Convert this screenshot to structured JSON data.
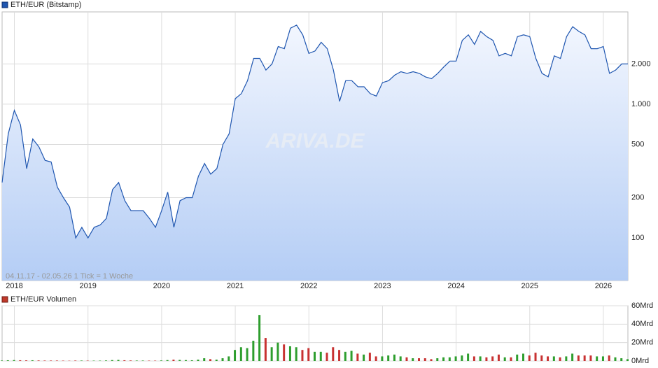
{
  "chart_data": [
    {
      "type": "line",
      "title": "ETH/EUR (Bitstamp)",
      "watermark": "ARIVA.DE",
      "footnote": "04.11.17 - 02.05.26   1 Tick = 1 Woche",
      "log_scale": true,
      "grid": true,
      "categories": [
        null,
        null,
        "2018",
        null,
        null,
        null,
        null,
        null,
        null,
        null,
        null,
        null,
        null,
        null,
        "2019",
        null,
        null,
        null,
        null,
        null,
        null,
        null,
        null,
        null,
        null,
        null,
        "2020",
        null,
        null,
        null,
        null,
        null,
        null,
        null,
        null,
        null,
        null,
        null,
        "2021",
        null,
        null,
        null,
        null,
        null,
        null,
        null,
        null,
        null,
        null,
        null,
        "2022",
        null,
        null,
        null,
        null,
        null,
        null,
        null,
        null,
        null,
        null,
        null,
        "2023",
        null,
        null,
        null,
        null,
        null,
        null,
        null,
        null,
        null,
        null,
        null,
        "2024",
        null,
        null,
        null,
        null,
        null,
        null,
        null,
        null,
        null,
        null,
        null,
        "2025",
        null,
        null,
        null,
        null,
        null,
        null,
        null,
        null,
        null,
        null,
        null,
        "2026",
        null,
        null,
        null,
        null
      ],
      "series": [
        {
          "name": "ETH/EUR (Bitstamp)",
          "color": "#1f56b0",
          "values": [
            260,
            600,
            900,
            700,
            330,
            550,
            480,
            380,
            370,
            240,
            200,
            170,
            100,
            120,
            100,
            120,
            125,
            140,
            230,
            260,
            190,
            160,
            160,
            160,
            140,
            120,
            160,
            220,
            120,
            190,
            200,
            200,
            290,
            360,
            300,
            330,
            500,
            600,
            1100,
            1200,
            1500,
            2200,
            2200,
            1800,
            2000,
            2700,
            2600,
            3700,
            3900,
            3300,
            2400,
            2500,
            2900,
            2600,
            1800,
            1050,
            1500,
            1500,
            1350,
            1350,
            1200,
            1150,
            1450,
            1500,
            1650,
            1750,
            1700,
            1750,
            1700,
            1600,
            1550,
            1700,
            1900,
            2100,
            2100,
            3000,
            3300,
            2800,
            3500,
            3200,
            3000,
            2300,
            2400,
            2300,
            3200,
            3300,
            3200,
            2200,
            1700,
            1600,
            2300,
            2200,
            3200,
            3800,
            3500,
            3300,
            2600,
            2600,
            2700,
            1700,
            1800,
            2000,
            2000
          ]
        }
      ],
      "ylim": [
        48,
        4900
      ],
      "yticks": [
        100,
        200,
        500,
        {
          "value": 1000,
          "label": "1.000"
        },
        {
          "value": 2000,
          "label": "2.000"
        }
      ]
    },
    {
      "type": "bar",
      "title": "ETH/EUR Volumen",
      "legend_color": "#c0392b",
      "colors": [
        "#2e9e2e",
        "#c83232"
      ],
      "values": [
        0.5,
        0.8,
        1,
        0.8,
        0.7,
        0.8,
        0.6,
        0.5,
        0.5,
        0.5,
        0.4,
        0.3,
        0.5,
        0.5,
        0.4,
        0.4,
        0.4,
        0.6,
        1,
        1.2,
        0.8,
        0.6,
        0.5,
        0.5,
        0.4,
        0.4,
        0.6,
        1,
        1.5,
        1.2,
        1,
        0.8,
        1.5,
        3,
        2,
        1.5,
        3,
        5,
        12,
        15,
        14,
        22,
        50,
        25,
        15,
        20,
        18,
        16,
        15,
        12,
        14,
        10,
        10,
        9,
        15,
        12,
        10,
        11,
        8,
        7,
        9,
        5,
        5,
        6,
        7,
        5,
        4,
        3,
        3,
        3,
        2,
        3,
        4,
        4,
        5,
        6,
        8,
        5,
        5,
        4,
        5,
        7,
        4,
        4,
        7,
        8,
        6,
        9,
        6,
        5,
        5,
        4,
        5,
        8,
        6,
        6,
        6,
        5,
        5,
        6,
        4,
        3,
        2
      ],
      "ylim": [
        0,
        60
      ],
      "yticks": [
        {
          "value": 0,
          "label": "0Mrd"
        },
        {
          "value": 20,
          "label": "20Mrd"
        },
        {
          "value": 40,
          "label": "40Mrd"
        },
        {
          "value": 60,
          "label": "60Mrd"
        }
      ]
    }
  ]
}
